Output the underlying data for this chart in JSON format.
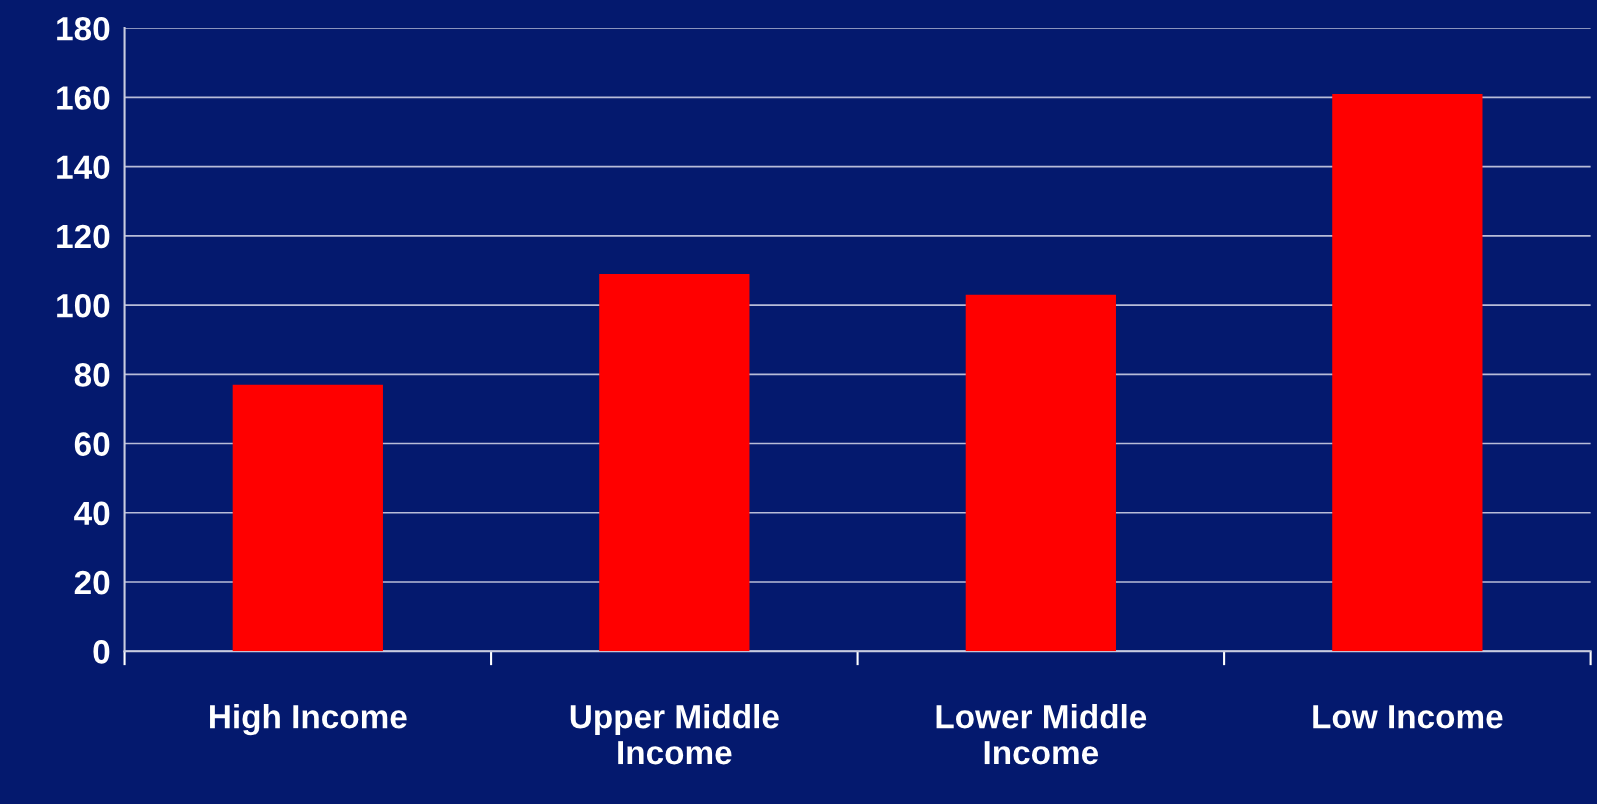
{
  "chart_data": {
    "type": "bar",
    "categories": [
      "High Income",
      "Upper Middle\nIncome",
      "Lower Middle\nIncome",
      "Low Income"
    ],
    "values": [
      77,
      109,
      103,
      161
    ],
    "color": "#ff0000",
    "ylim": [
      0,
      180
    ],
    "yticks": [
      0,
      20,
      40,
      60,
      80,
      100,
      120,
      140,
      160,
      180
    ],
    "grid": "y"
  }
}
